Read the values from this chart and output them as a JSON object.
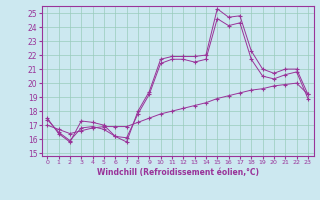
{
  "xlabel": "Windchill (Refroidissement éolien,°C)",
  "bg_color": "#cce8f0",
  "grid_color": "#99ccbb",
  "line_color": "#993399",
  "xlim": [
    -0.5,
    23.5
  ],
  "ylim": [
    14.8,
    25.5
  ],
  "xticks": [
    0,
    1,
    2,
    3,
    4,
    5,
    6,
    7,
    8,
    9,
    10,
    11,
    12,
    13,
    14,
    15,
    16,
    17,
    18,
    19,
    20,
    21,
    22,
    23
  ],
  "yticks": [
    15,
    16,
    17,
    18,
    19,
    20,
    21,
    22,
    23,
    24,
    25
  ],
  "series1_x": [
    0,
    1,
    2,
    3,
    4,
    5,
    6,
    7,
    8,
    9,
    10,
    11,
    12,
    13,
    14,
    15,
    16,
    17,
    18,
    19,
    20,
    21,
    22,
    23
  ],
  "series1_y": [
    17.5,
    16.4,
    15.8,
    17.3,
    17.2,
    17.0,
    16.2,
    15.8,
    18.0,
    19.4,
    21.7,
    21.9,
    21.9,
    21.9,
    22.0,
    25.3,
    24.7,
    24.8,
    22.3,
    21.0,
    20.7,
    21.0,
    21.0,
    19.2
  ],
  "series2_x": [
    0,
    1,
    2,
    3,
    4,
    5,
    6,
    7,
    8,
    9,
    10,
    11,
    12,
    13,
    14,
    15,
    16,
    17,
    18,
    19,
    20,
    21,
    22,
    23
  ],
  "series2_y": [
    17.4,
    16.5,
    15.9,
    16.8,
    16.9,
    16.7,
    16.2,
    16.1,
    17.8,
    19.2,
    21.4,
    21.7,
    21.7,
    21.5,
    21.7,
    24.6,
    24.1,
    24.3,
    21.7,
    20.5,
    20.3,
    20.6,
    20.8,
    18.9
  ],
  "series3_x": [
    0,
    1,
    2,
    3,
    4,
    5,
    6,
    7,
    8,
    9,
    10,
    11,
    12,
    13,
    14,
    15,
    16,
    17,
    18,
    19,
    20,
    21,
    22,
    23
  ],
  "series3_y": [
    17.0,
    16.7,
    16.4,
    16.6,
    16.8,
    16.9,
    16.9,
    16.9,
    17.2,
    17.5,
    17.8,
    18.0,
    18.2,
    18.4,
    18.6,
    18.9,
    19.1,
    19.3,
    19.5,
    19.6,
    19.8,
    19.9,
    20.0,
    19.2
  ]
}
